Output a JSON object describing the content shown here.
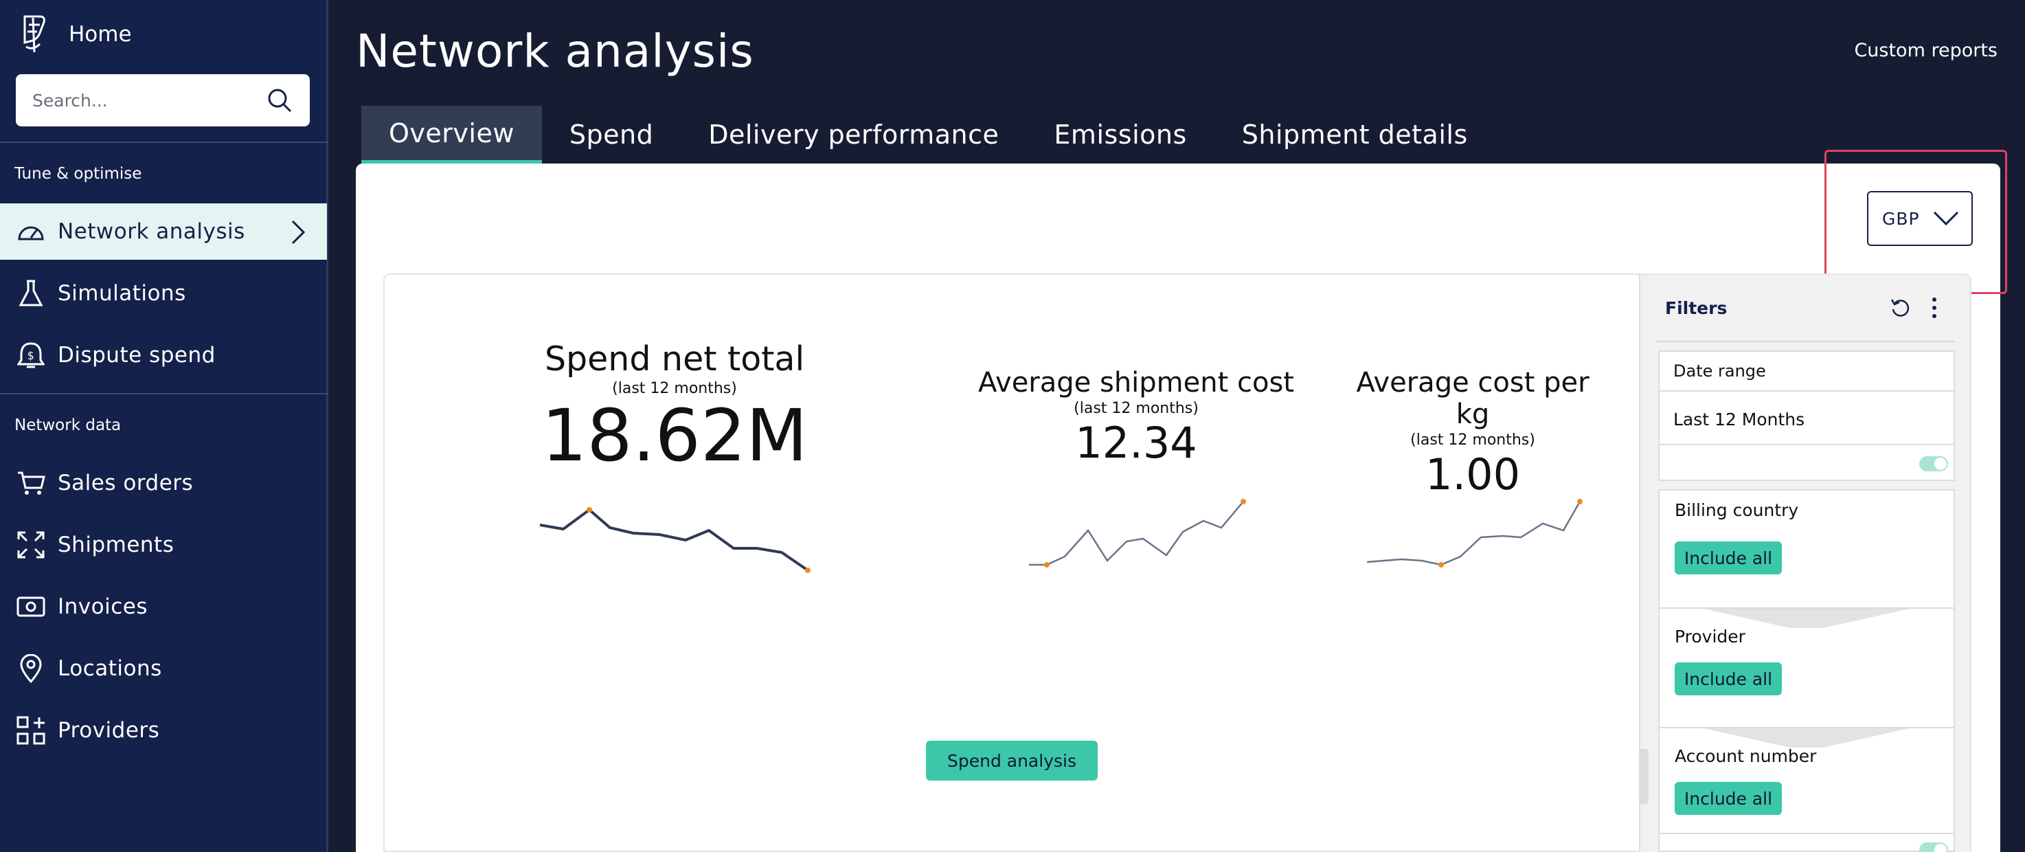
{
  "sidebar": {
    "home_label": "Home",
    "search_placeholder": "Search...",
    "sections": [
      {
        "label": "Tune & optimise"
      },
      {
        "label": "Network data"
      }
    ],
    "items": [
      {
        "label": "Network analysis",
        "icon": "gauge-icon",
        "active": true
      },
      {
        "label": "Simulations",
        "icon": "flask-icon"
      },
      {
        "label": "Dispute spend",
        "icon": "dispute-icon"
      },
      {
        "label": "Sales orders",
        "icon": "cart-icon"
      },
      {
        "label": "Shipments",
        "icon": "expand-icon"
      },
      {
        "label": "Invoices",
        "icon": "invoice-icon"
      },
      {
        "label": "Locations",
        "icon": "map-pin-icon"
      },
      {
        "label": "Providers",
        "icon": "providers-icon"
      }
    ]
  },
  "header": {
    "title": "Network analysis",
    "custom_reports": "Custom reports"
  },
  "tabs": [
    {
      "label": "Overview",
      "active": true
    },
    {
      "label": "Spend"
    },
    {
      "label": "Delivery performance"
    },
    {
      "label": "Emissions"
    },
    {
      "label": "Shipment details"
    }
  ],
  "currency": {
    "selected": "GBP"
  },
  "kpis": [
    {
      "title": "Spend net total",
      "subtitle": "(last 12 months)",
      "value": "18.62M"
    },
    {
      "title": "Average shipment cost",
      "subtitle": "(last 12 months)",
      "value": "12.34"
    },
    {
      "title": "Average cost per kg",
      "subtitle": "(last 12 months)",
      "value": "1.00"
    }
  ],
  "spend_button": "Spend analysis",
  "filters": {
    "title": "Filters",
    "date_range_label": "Date range",
    "date_range_value": "Last 12 Months",
    "groups": [
      {
        "label": "Billing country",
        "button": "Include all"
      },
      {
        "label": "Provider",
        "button": "Include all"
      },
      {
        "label": "Account number",
        "button": "Include all"
      }
    ]
  },
  "colors": {
    "sidebar_bg": "#14214a",
    "page_bg": "#161d33",
    "accent": "#3cc7a9",
    "active_nav_bg": "#e4f4f2",
    "highlight": "#e0425f",
    "spark_line": "#2f3a55",
    "spark_marker": "#f08a24"
  }
}
